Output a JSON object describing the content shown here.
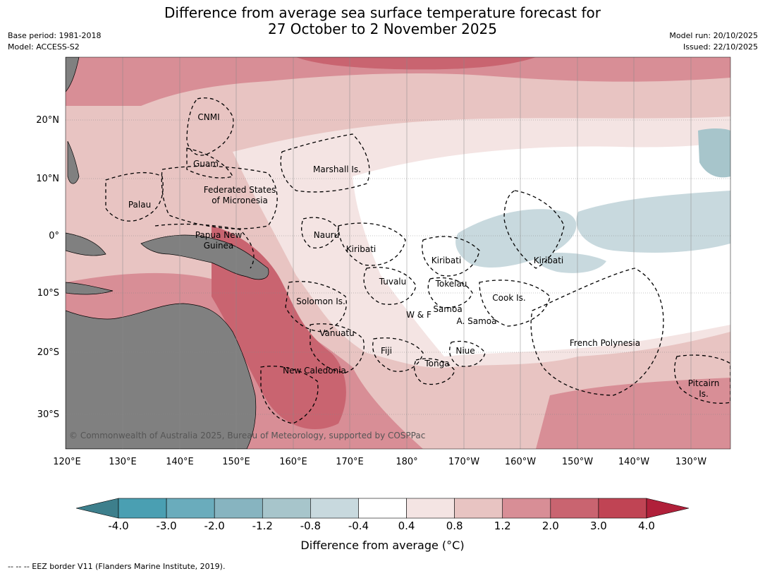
{
  "header": {
    "title_line1": "Difference from average sea surface temperature forecast for",
    "title_line2": "27 October to 2 November 2025",
    "base_period": "Base period: 1981-2018",
    "model": "Model: ACCESS-S2",
    "model_run": "Model run: 20/10/2025",
    "issued": "Issued: 22/10/2025"
  },
  "map": {
    "lon_labels": [
      "120°E",
      "130°E",
      "140°E",
      "150°E",
      "160°E",
      "170°E",
      "180°",
      "170°W",
      "160°W",
      "150°W",
      "140°W",
      "130°W"
    ],
    "lat_labels": [
      "20°N",
      "10°N",
      "0°",
      "10°S",
      "20°S",
      "30°S"
    ],
    "regions": [
      "CNMI",
      "Guam",
      "Marshall Is.",
      "Federated States",
      "of Micronesia",
      "Palau",
      "Papua New",
      "Guinea",
      "Nauru",
      "Kiribati",
      "Kiribati",
      "Kiribati",
      "Tuvalu",
      "Tokelau",
      "Cook Is.",
      "Samoa",
      "W & F",
      "A. Samoa",
      "Solomon Is.",
      "Vanuatu",
      "Fiji",
      "Niue",
      "Tonga",
      "New Caledonia",
      "French Polynesia",
      "Pitcairn",
      "Is."
    ],
    "copyright": "© Commonwealth of Australia 2025, Bureau of Meteorology, supported by COSPPac",
    "colors": {
      "land": "#808080",
      "ocean_neutral": "#ffffff",
      "eez": "#000000"
    }
  },
  "colorbar": {
    "title": "Difference from average (°C)",
    "ticks": [
      "-4.0",
      "-3.0",
      "-2.0",
      "-1.2",
      "-0.8",
      "-0.4",
      "0.4",
      "0.8",
      "1.2",
      "2.0",
      "3.0",
      "4.0"
    ],
    "colors": [
      "#3d7f8c",
      "#4a9fb2",
      "#6aacbc",
      "#87b4c0",
      "#a7c5cb",
      "#c8d9de",
      "#ffffff",
      "#f4e4e3",
      "#e8c4c2",
      "#d88e96",
      "#c96470",
      "#c04454",
      "#b0203a"
    ]
  },
  "footer": "-- -- -- EEZ border V11 (Flanders Marine Institute, 2019)."
}
